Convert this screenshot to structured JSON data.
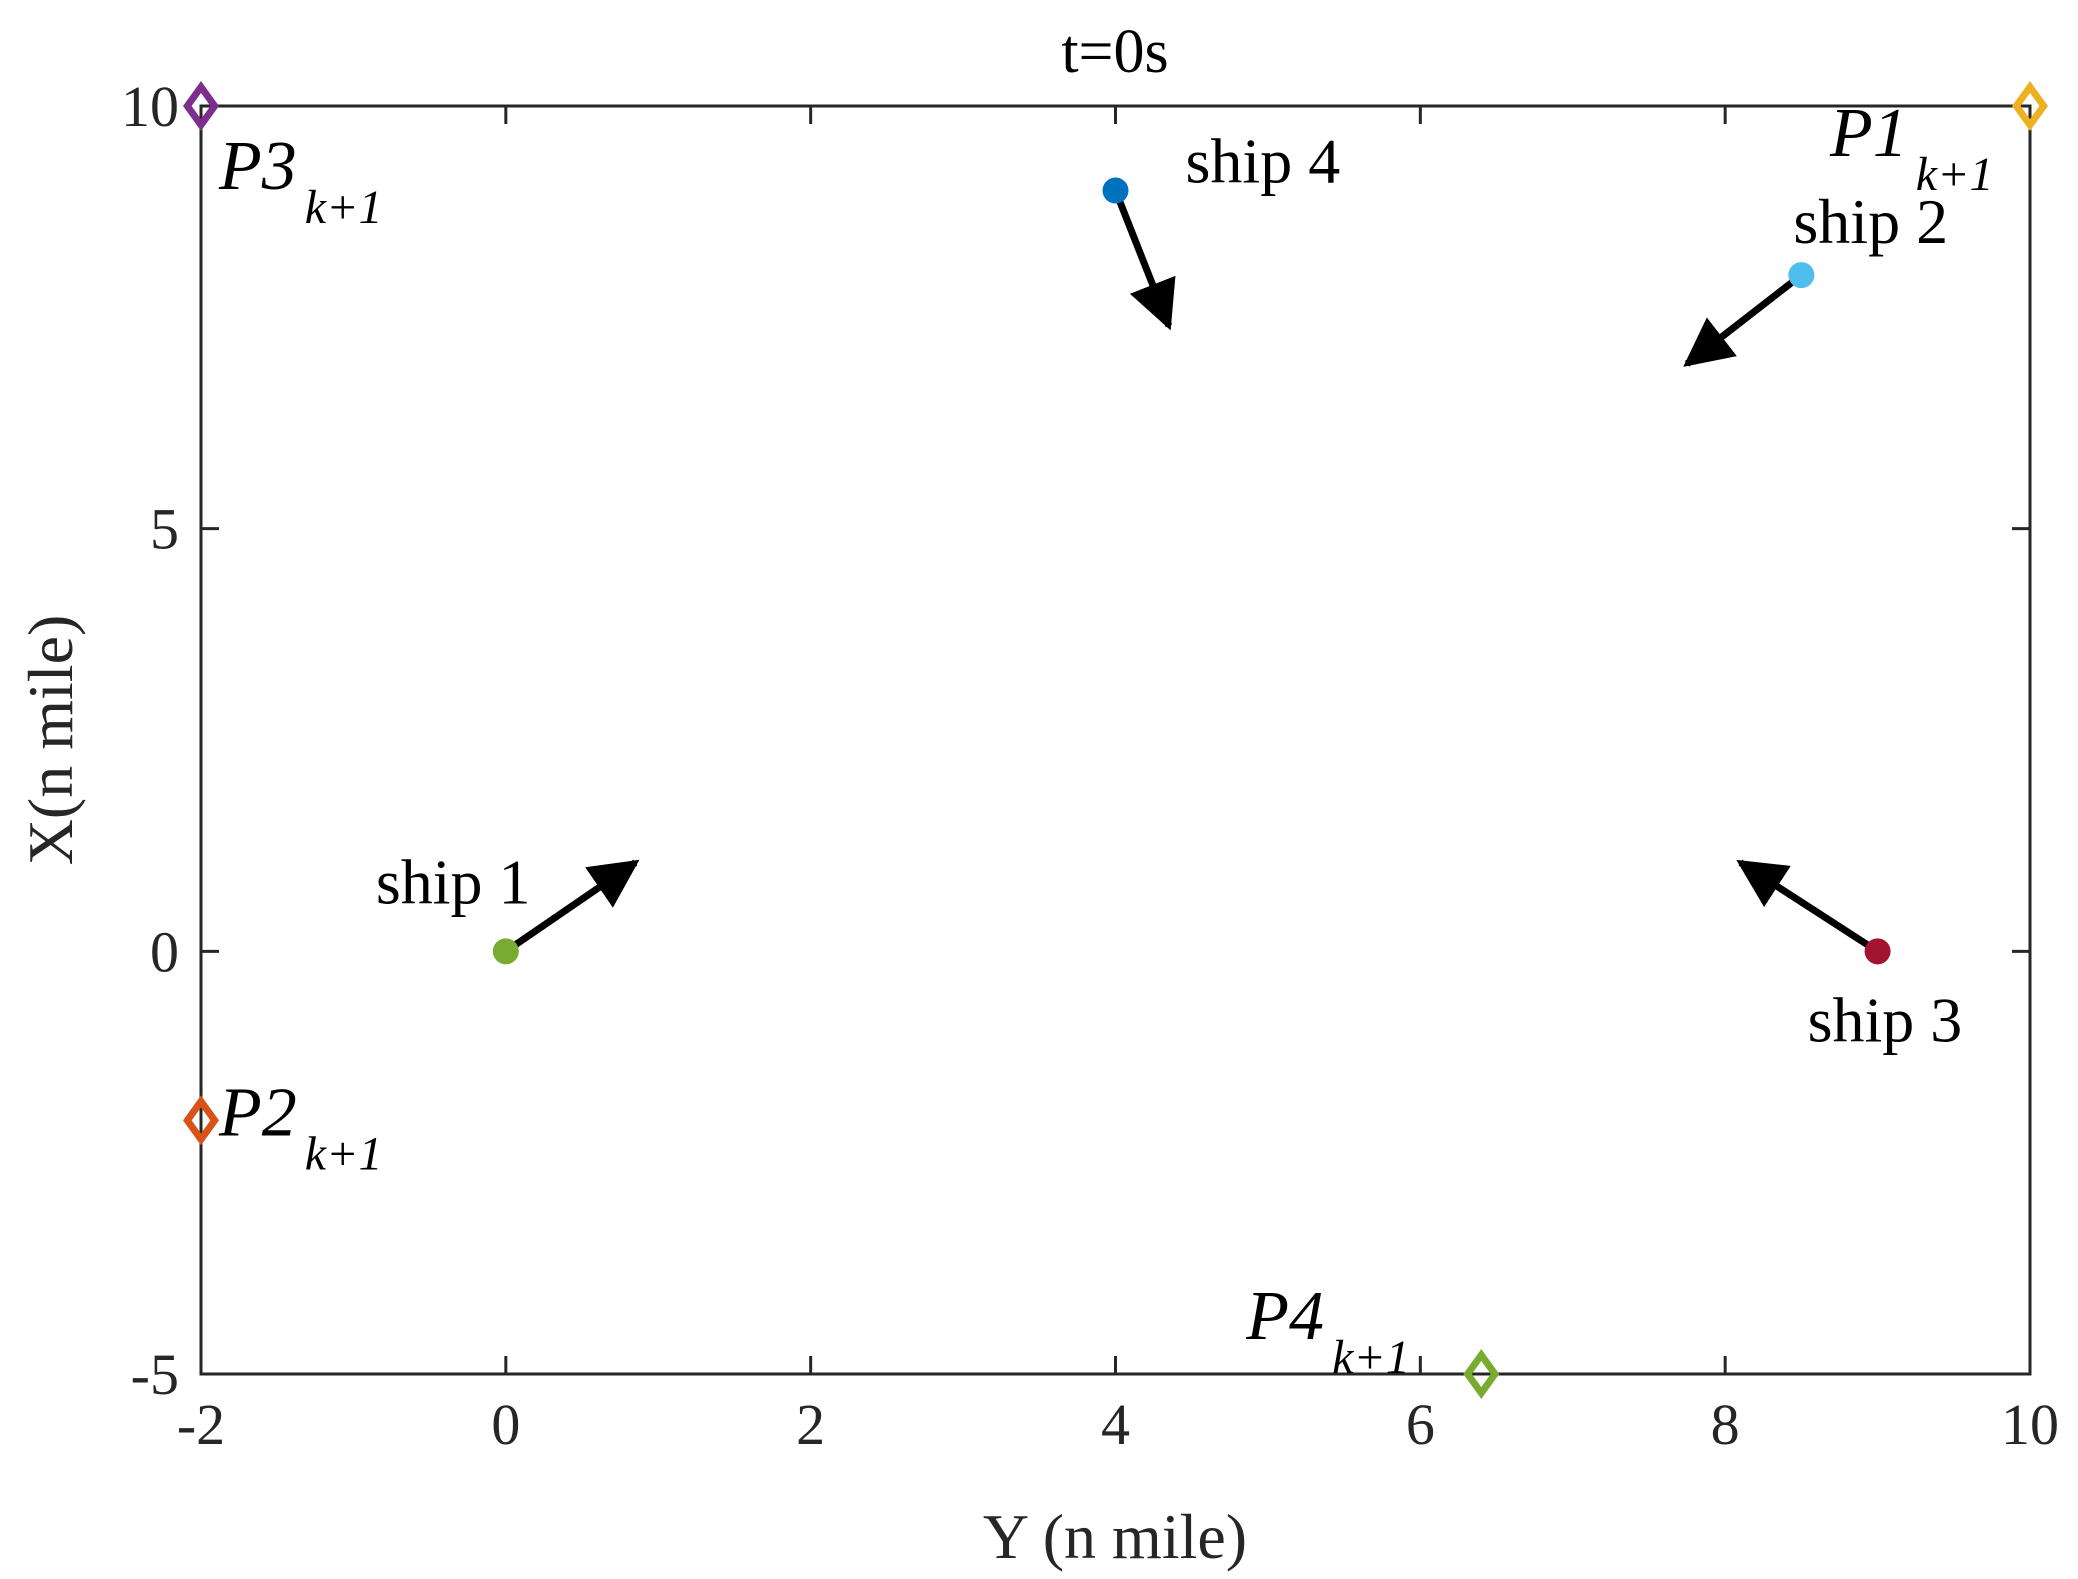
{
  "chart_data": {
    "type": "scatter",
    "title": "t=0s",
    "xlabel": "Y (n mile)",
    "ylabel": "X(n mile)",
    "xlim": [
      -2,
      10
    ],
    "ylim": [
      -5,
      10
    ],
    "xticks": [
      "-2",
      "0",
      "2",
      "4",
      "6",
      "8",
      "10"
    ],
    "yticks": [
      "-5",
      "0",
      "5",
      "10"
    ],
    "grid": false,
    "ships": [
      {
        "label": "ship 1",
        "x": 0,
        "y": 0,
        "color": "#77AC30",
        "heading": [
          0.85,
          1.05
        ]
      },
      {
        "label": "ship 2",
        "x": 8.5,
        "y": 8,
        "color": "#4DBEEE",
        "heading": [
          -0.75,
          -1.05
        ]
      },
      {
        "label": "ship 3",
        "x": 9,
        "y": 0,
        "color": "#A2142F",
        "heading": [
          -0.9,
          1.05
        ]
      },
      {
        "label": "ship 4",
        "x": 4,
        "y": 9,
        "color": "#0072BD",
        "heading": [
          0.35,
          -1.6
        ]
      }
    ],
    "targets": [
      {
        "name": "P1",
        "sub": "k+1",
        "x": 10,
        "y": 10,
        "color": "#EDB120"
      },
      {
        "name": "P2",
        "sub": "k+1",
        "x": -2,
        "y": -2,
        "color": "#D95319"
      },
      {
        "name": "P3",
        "sub": "k+1",
        "x": -2,
        "y": 10,
        "color": "#7E2F8E"
      },
      {
        "name": "P4",
        "sub": "k+1",
        "x": 6.4,
        "y": -5,
        "color": "#77AC30"
      }
    ]
  }
}
